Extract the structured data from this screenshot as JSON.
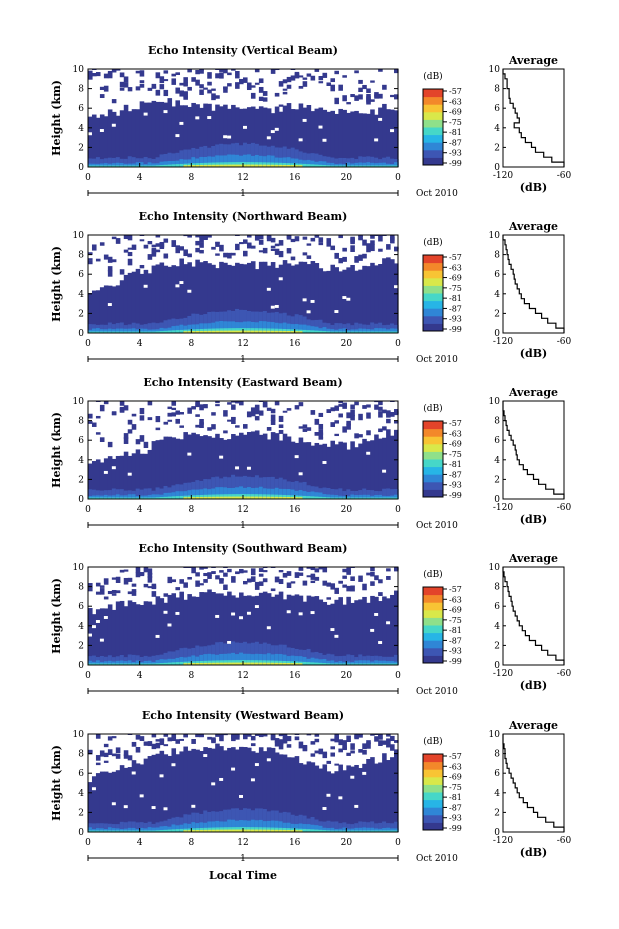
{
  "figure": {
    "x_axis_label": "Local Time",
    "date_label": "Oct 2010",
    "day_marker": "1"
  },
  "colorbar": {
    "unit": "(dB)",
    "ticks": [
      "-57",
      "-63",
      "-69",
      "-75",
      "-81",
      "-87",
      "-93",
      "-99"
    ]
  },
  "average_panel": {
    "title": "Average",
    "xlabel": "(dB)",
    "xticks": [
      "-120",
      "-60"
    ]
  },
  "colors": {
    "background_echo": "#34398e",
    "scale": [
      "#34398e",
      "#3d56b3",
      "#2f86d6",
      "#27b5e6",
      "#46d7c8",
      "#8fe08a",
      "#d9e84a",
      "#f8c434",
      "#f3882a",
      "#e3442a"
    ]
  },
  "chart_data": [
    {
      "type": "heatmap",
      "title": "Echo Intensity (Vertical Beam)",
      "ylabel": "Height (km)",
      "xlim": [
        0,
        24
      ],
      "ylim": [
        0,
        10
      ],
      "xticks": [
        "0",
        "4",
        "8",
        "12",
        "16",
        "20",
        "0"
      ],
      "yticks": [
        "0",
        "2",
        "4",
        "6",
        "8",
        "10"
      ],
      "echo_top_km": [
        5.0,
        5.3,
        5.6,
        6.0,
        6.3,
        6.5,
        6.6,
        6.6,
        6.5,
        6.3,
        6.1,
        6.0,
        5.9,
        5.8,
        5.9,
        6.0,
        6.2,
        6.0,
        5.8,
        5.6,
        5.5,
        5.5,
        5.6,
        6.0,
        6.2
      ],
      "average_profile": {
        "heights_km": [
          0,
          0.5,
          1,
          1.5,
          2,
          2.5,
          3,
          3.5,
          4,
          4.5,
          5,
          5.5,
          6,
          6.5,
          7,
          7.5,
          8,
          8.5,
          9,
          9.5,
          10
        ],
        "values_db": [
          -60,
          -72,
          -80,
          -88,
          -92,
          -98,
          -102,
          -104,
          -109,
          -104,
          -106,
          -108,
          -110,
          -113,
          -114,
          -114,
          -116,
          -116,
          -118,
          -120,
          -120
        ]
      }
    },
    {
      "type": "heatmap",
      "title": "Echo Intensity (Northward Beam)",
      "ylabel": "Height (km)",
      "xlim": [
        0,
        24
      ],
      "ylim": [
        0,
        10
      ],
      "xticks": [
        "0",
        "4",
        "8",
        "12",
        "16",
        "20",
        "0"
      ],
      "yticks": [
        "0",
        "2",
        "4",
        "6",
        "8",
        "10"
      ],
      "echo_top_km": [
        4.5,
        4.8,
        5.2,
        5.8,
        6.2,
        6.6,
        7.0,
        7.2,
        7.1,
        7.0,
        6.9,
        6.8,
        6.8,
        6.9,
        7.0,
        7.0,
        7.1,
        7.0,
        6.8,
        6.6,
        6.5,
        6.6,
        7.0,
        7.3,
        7.5
      ],
      "average_profile": {
        "heights_km": [
          0,
          0.5,
          1,
          1.5,
          2,
          2.5,
          3,
          3.5,
          4,
          4.5,
          5,
          5.5,
          6,
          6.5,
          7,
          7.5,
          8,
          8.5,
          9,
          9.5,
          10
        ],
        "values_db": [
          -60,
          -68,
          -76,
          -82,
          -88,
          -94,
          -99,
          -102,
          -104,
          -106,
          -108,
          -109,
          -110,
          -112,
          -114,
          -115,
          -116,
          -117,
          -118,
          -120,
          -120
        ]
      }
    },
    {
      "type": "heatmap",
      "title": "Echo Intensity (Eastward Beam)",
      "ylabel": "Height (km)",
      "xlim": [
        0,
        24
      ],
      "ylim": [
        0,
        10
      ],
      "xticks": [
        "0",
        "4",
        "8",
        "12",
        "16",
        "20",
        "0"
      ],
      "yticks": [
        "0",
        "2",
        "4",
        "6",
        "8",
        "10"
      ],
      "echo_top_km": [
        3.5,
        3.8,
        4.2,
        4.5,
        4.8,
        5.5,
        6.2,
        6.5,
        6.6,
        6.6,
        6.5,
        6.4,
        6.5,
        6.6,
        6.5,
        6.3,
        6.0,
        5.8,
        5.6,
        5.5,
        5.4,
        5.6,
        6.0,
        6.5,
        7.0
      ],
      "average_profile": {
        "heights_km": [
          0,
          0.5,
          1,
          1.5,
          2,
          2.5,
          3,
          3.5,
          4,
          4.5,
          5,
          5.5,
          6,
          6.5,
          7,
          7.5,
          8,
          8.5,
          9,
          9.5,
          10
        ],
        "values_db": [
          -60,
          -70,
          -78,
          -85,
          -90,
          -96,
          -100,
          -104,
          -106,
          -107,
          -108,
          -110,
          -112,
          -114,
          -116,
          -117,
          -118,
          -119,
          -120,
          -120,
          -120
        ]
      }
    },
    {
      "type": "heatmap",
      "title": "Echo Intensity (Southward Beam)",
      "ylabel": "Height (km)",
      "xlim": [
        0,
        24
      ],
      "ylim": [
        0,
        10
      ],
      "xticks": [
        "0",
        "4",
        "8",
        "12",
        "16",
        "20",
        "0"
      ],
      "yticks": [
        "0",
        "2",
        "4",
        "6",
        "8",
        "10"
      ],
      "echo_top_km": [
        5.5,
        5.8,
        6.0,
        6.2,
        6.3,
        6.5,
        6.8,
        7.0,
        7.2,
        7.3,
        7.3,
        7.2,
        7.1,
        7.0,
        7.1,
        7.2,
        7.0,
        6.8,
        6.6,
        6.5,
        6.5,
        6.6,
        6.8,
        7.0,
        7.4
      ],
      "average_profile": {
        "heights_km": [
          0,
          0.5,
          1,
          1.5,
          2,
          2.5,
          3,
          3.5,
          4,
          4.5,
          5,
          5.5,
          6,
          6.5,
          7,
          7.5,
          8,
          8.5,
          9,
          9.5,
          10
        ],
        "values_db": [
          -60,
          -68,
          -76,
          -82,
          -88,
          -94,
          -98,
          -101,
          -104,
          -106,
          -108,
          -110,
          -111,
          -112,
          -114,
          -115,
          -116,
          -118,
          -119,
          -120,
          -120
        ]
      }
    },
    {
      "type": "heatmap",
      "title": "Echo Intensity (Westward Beam)",
      "ylabel": "Height (km)",
      "xlim": [
        0,
        24
      ],
      "ylim": [
        0,
        10
      ],
      "xticks": [
        "0",
        "4",
        "8",
        "12",
        "16",
        "20",
        "0"
      ],
      "yticks": [
        "0",
        "2",
        "4",
        "6",
        "8",
        "10"
      ],
      "echo_top_km": [
        5.5,
        5.8,
        6.2,
        6.8,
        7.2,
        7.6,
        8.0,
        8.4,
        8.6,
        8.7,
        8.8,
        8.7,
        8.6,
        8.5,
        8.3,
        8.0,
        7.5,
        7.0,
        6.6,
        6.4,
        6.5,
        6.8,
        7.2,
        7.6,
        8.0
      ],
      "average_profile": {
        "heights_km": [
          0,
          0.5,
          1,
          1.5,
          2,
          2.5,
          3,
          3.5,
          4,
          4.5,
          5,
          5.5,
          6,
          6.5,
          7,
          7.5,
          8,
          8.5,
          9,
          9.5,
          10
        ],
        "values_db": [
          -60,
          -70,
          -78,
          -86,
          -90,
          -96,
          -100,
          -104,
          -106,
          -108,
          -110,
          -112,
          -114,
          -116,
          -117,
          -118,
          -118,
          -119,
          -120,
          -120,
          -120
        ]
      }
    }
  ]
}
